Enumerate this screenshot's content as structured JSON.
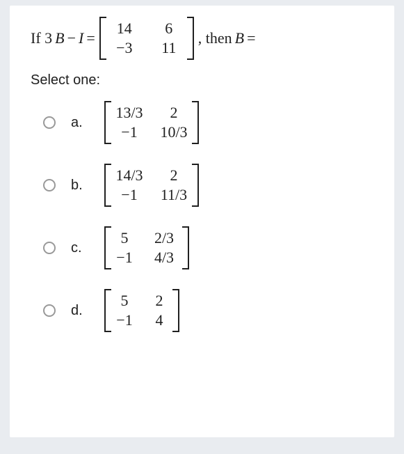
{
  "question": {
    "pre": "If 3",
    "var1": "B",
    "minus": " − ",
    "var2": "I",
    "equals": " = ",
    "matrix": {
      "r1c1": "14",
      "r1c2": "6",
      "r2c1": "−3",
      "r2c2": "11"
    },
    "post": ", then ",
    "var3": "B",
    "equals2": " ="
  },
  "prompt": "Select one:",
  "options": {
    "a": {
      "letter": "a.",
      "m": {
        "r1c1": "13/3",
        "r1c2": "2",
        "r2c1": "−1",
        "r2c2": "10/3"
      }
    },
    "b": {
      "letter": "b.",
      "m": {
        "r1c1": "14/3",
        "r1c2": "2",
        "r2c1": "−1",
        "r2c2": "11/3"
      }
    },
    "c": {
      "letter": "c.",
      "m": {
        "r1c1": "5",
        "r1c2": "2/3",
        "r2c1": "−1",
        "r2c2": "4/3"
      }
    },
    "d": {
      "letter": "d.",
      "m": {
        "r1c1": "5",
        "r1c2": "2",
        "r2c1": "−1",
        "r2c2": "4"
      }
    }
  },
  "colors": {
    "card_bg": "#ffffff",
    "page_bg": "#e9ecf0",
    "text": "#202020",
    "radio_border": "#999999"
  }
}
